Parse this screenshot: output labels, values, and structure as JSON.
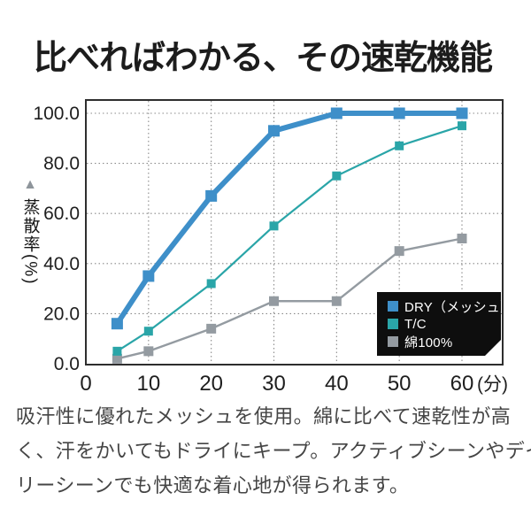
{
  "page": {
    "title": "比べればわかる、その速乾機能",
    "description_lines": [
      "吸汗性に優れたメッシュを使用。綿に比べて速乾性が高",
      "く、汗をかいてもドライにキープ。アクティブシーンやデイ",
      "リーシーンでも快適な着心地が得られます。"
    ]
  },
  "chart_data": {
    "type": "line",
    "title": "比べればわかる、その速乾機能",
    "ylabel": "蒸散率(%)",
    "ylabel_pointer": "▲",
    "xlabel_unit": "(分)",
    "x": [
      5,
      10,
      20,
      30,
      40,
      50,
      60
    ],
    "series": [
      {
        "name": "DRY（メッシュ）",
        "color": "#3e8fc9",
        "line_width": 6,
        "marker_size": 13,
        "values": [
          16,
          35,
          67,
          93,
          100,
          100,
          100
        ]
      },
      {
        "name": "T/C",
        "color": "#2aa5a8",
        "line_width": 2.2,
        "marker_size": 10,
        "values": [
          5,
          13,
          32,
          55,
          75,
          87,
          95
        ]
      },
      {
        "name": "綿100%",
        "color": "#949ba1",
        "line_width": 2.4,
        "marker_size": 11,
        "values": [
          2,
          5,
          14,
          25,
          25,
          45,
          50
        ]
      }
    ],
    "xticks": [
      0,
      10,
      20,
      30,
      40,
      50,
      60
    ],
    "xtick_labels": [
      "0",
      "10",
      "20",
      "30",
      "40",
      "50",
      "60"
    ],
    "yticks": [
      0,
      20,
      40,
      60,
      80,
      100
    ],
    "ytick_labels": [
      "0.0",
      "20.0",
      "40.0",
      "60.0",
      "80.0",
      "100.0"
    ],
    "xlim": [
      0,
      66.5
    ],
    "ylim": [
      0,
      100
    ],
    "grid": "dotted",
    "legend_position": "bottom-right",
    "colors": {
      "frame": "#2e2e2e",
      "grid": "#8a8a8a",
      "tick_text": "#1e1e1e",
      "legend_background": "#0e0e0e",
      "legend_text": "#ffffff",
      "pointer": "#8e959b"
    }
  }
}
